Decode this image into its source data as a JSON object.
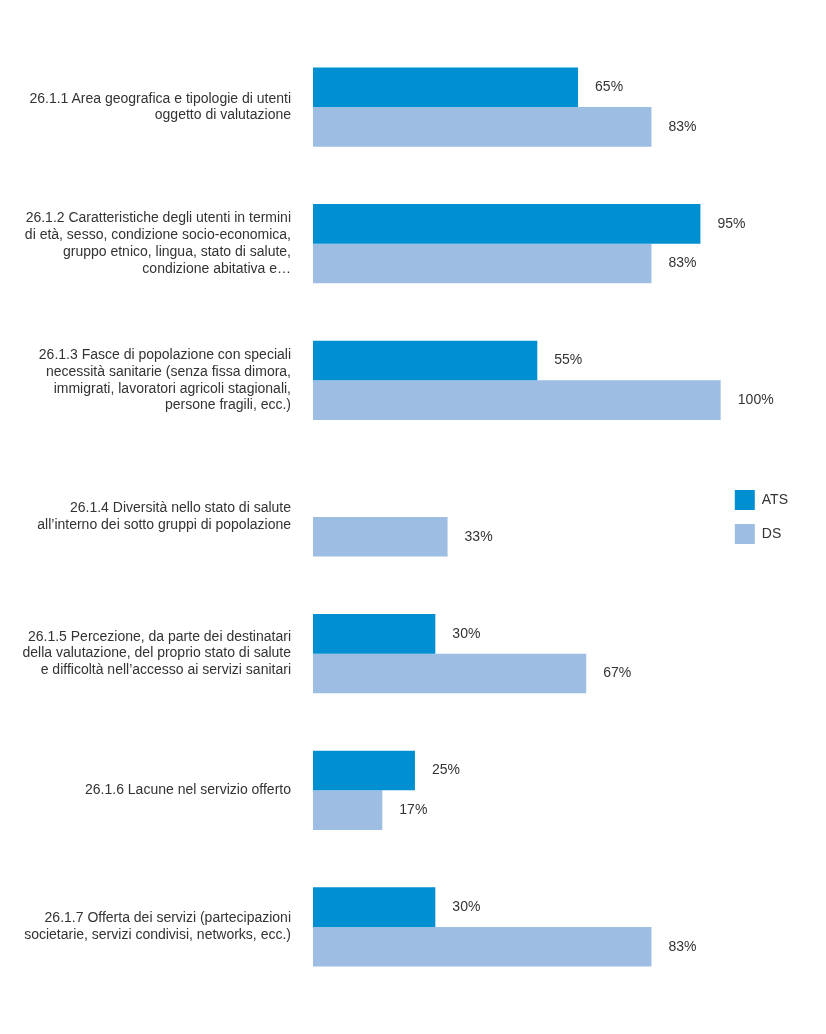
{
  "chart_data": {
    "type": "bar",
    "orientation": "horizontal",
    "categories": [
      "26.1.1 Area geografica e tipologie di utenti oggetto di valutazione",
      "26.1.2 Caratteristiche degli utenti in termini di età, sesso, condizione socio-economica, gruppo etnico, lingua, stato di salute, condizione abitativa e…",
      "26.1.3 Fasce di popolazione con speciali necessità sanitarie (senza fissa dimora, immigrati, lavoratori agricoli stagionali, persone fragili, ecc.)",
      "26.1.4 Diversità nello stato di salute all’interno dei sotto gruppi di popolazione",
      "26.1.5 Percezione, da parte dei destinatari della valutazione, del proprio stato di salute e difficoltà nell’accesso ai servizi sanitari",
      "26.1.6 Lacune nel servizio offerto",
      "26.1.7 Offerta dei servizi (partecipazioni societarie, servizi condivisi, networks, ecc.)"
    ],
    "series": [
      {
        "name": "ATS",
        "color": "#008fd0",
        "values": [
          65,
          95,
          55,
          null,
          30,
          25,
          30
        ],
        "value_labels": [
          "65%",
          "95%",
          "55%",
          null,
          "30%",
          "25%",
          "30%"
        ]
      },
      {
        "name": "DS",
        "color": "#9dbee2",
        "values": [
          83,
          83,
          100,
          33,
          67,
          17,
          83
        ],
        "value_labels": [
          "83%",
          "83%",
          "100%",
          "33%",
          "67%",
          "17%",
          "83%"
        ]
      }
    ],
    "xlim": [
      0,
      100
    ],
    "tick_labels": "y",
    "legend": "right"
  }
}
